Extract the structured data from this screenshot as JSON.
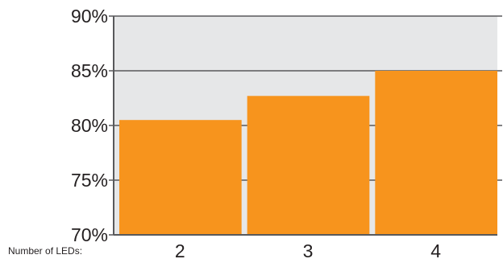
{
  "colors": {
    "plot_background": "#e6e7e8",
    "bar": "#f7941d",
    "axis": "#58595b",
    "text": "#231f20"
  },
  "chart_data": {
    "type": "bar",
    "xlabel": "Number of LEDs:",
    "categories": [
      "2",
      "3",
      "4"
    ],
    "values": [
      80.5,
      82.7,
      85.0
    ],
    "ylim": [
      70,
      90
    ],
    "yticks": [
      70,
      75,
      80,
      85,
      90
    ],
    "ytick_labels": [
      "70%",
      "75%",
      "80%",
      "85%",
      "90%"
    ],
    "grid": true
  }
}
